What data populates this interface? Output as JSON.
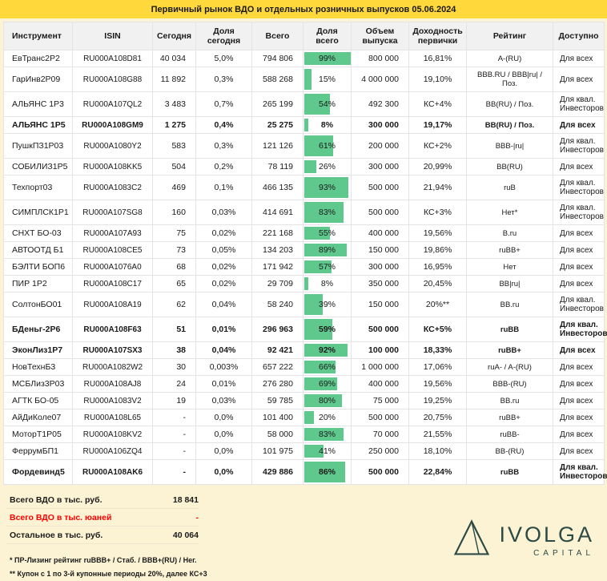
{
  "chart_data": {
    "type": "table",
    "title": "Первичный рынок ВДО и отдельных розничных выпусков 05.06.2024",
    "columns": [
      "Инструмент",
      "ISIN",
      "Сегодня",
      "Доля сегодня",
      "Всего",
      "Доля всего",
      "Объем выпуска",
      "Доходность первички",
      "Рейтинг",
      "Доступно"
    ],
    "rows": [
      {
        "instrument": "ЕвТранс2Р2",
        "isin": "RU000A108D81",
        "today": "40 034",
        "share_today": "5,0%",
        "total": "794 806",
        "share_total": 99,
        "share_total_label": "99%",
        "volume": "800 000",
        "yield": "16,81%",
        "rating": "A-(RU)",
        "access": "Для всех",
        "bold": false
      },
      {
        "instrument": "ГарИнв2Р09",
        "isin": "RU000A108G88",
        "today": "11 892",
        "share_today": "0,3%",
        "total": "588 268",
        "share_total": 15,
        "share_total_label": "15%",
        "volume": "4 000 000",
        "yield": "19,10%",
        "rating": "BBB.RU / BBB|ru| / Поз.",
        "access": "Для всех",
        "bold": false
      },
      {
        "instrument": "АЛЬЯНС 1Р3",
        "isin": "RU000A107QL2",
        "today": "3 483",
        "share_today": "0,7%",
        "total": "265 199",
        "share_total": 54,
        "share_total_label": "54%",
        "volume": "492 300",
        "yield": "КС+4%",
        "rating": "BB(RU) / Поз.",
        "access": "Для квал. Инвесторов",
        "bold": false
      },
      {
        "instrument": "АЛЬЯНС 1Р5",
        "isin": "RU000A108GM9",
        "today": "1 275",
        "share_today": "0,4%",
        "total": "25 275",
        "share_total": 8,
        "share_total_label": "8%",
        "volume": "300 000",
        "yield": "19,17%",
        "rating": "BB(RU) / Поз.",
        "access": "Для всех",
        "bold": true
      },
      {
        "instrument": "ПушкПЗ1Р03",
        "isin": "RU000A1080Y2",
        "today": "583",
        "share_today": "0,3%",
        "total": "121 126",
        "share_total": 61,
        "share_total_label": "61%",
        "volume": "200 000",
        "yield": "КС+2%",
        "rating": "BBB-|ru|",
        "access": "Для квал. Инвесторов",
        "bold": false
      },
      {
        "instrument": "СОБИЛИЗ1Р5",
        "isin": "RU000A108KK5",
        "today": "504",
        "share_today": "0,2%",
        "total": "78 119",
        "share_total": 26,
        "share_total_label": "26%",
        "volume": "300 000",
        "yield": "20,99%",
        "rating": "BB(RU)",
        "access": "Для всех",
        "bold": false
      },
      {
        "instrument": "Техпорт03",
        "isin": "RU000A1083C2",
        "today": "469",
        "share_today": "0,1%",
        "total": "466 135",
        "share_total": 93,
        "share_total_label": "93%",
        "volume": "500 000",
        "yield": "21,94%",
        "rating": "ruB",
        "access": "Для квал. Инвесторов",
        "bold": false
      },
      {
        "instrument": "СИМПЛСК1Р1",
        "isin": "RU000A107SG8",
        "today": "160",
        "share_today": "0,03%",
        "total": "414 691",
        "share_total": 83,
        "share_total_label": "83%",
        "volume": "500 000",
        "yield": "КС+3%",
        "rating": "Нет*",
        "access": "Для квал. Инвесторов",
        "bold": false
      },
      {
        "instrument": "СНХТ БО-03",
        "isin": "RU000A107A93",
        "today": "75",
        "share_today": "0,02%",
        "total": "221 168",
        "share_total": 55,
        "share_total_label": "55%",
        "volume": "400 000",
        "yield": "19,56%",
        "rating": "B.ru",
        "access": "Для всех",
        "bold": false
      },
      {
        "instrument": "АВТООТД Б1",
        "isin": "RU000A108CE5",
        "today": "73",
        "share_today": "0,05%",
        "total": "134 203",
        "share_total": 89,
        "share_total_label": "89%",
        "volume": "150 000",
        "yield": "19,86%",
        "rating": "ruBB+",
        "access": "Для всех",
        "bold": false
      },
      {
        "instrument": "БЭЛТИ БОП6",
        "isin": "RU000A1076A0",
        "today": "68",
        "share_today": "0,02%",
        "total": "171 942",
        "share_total": 57,
        "share_total_label": "57%",
        "volume": "300 000",
        "yield": "16,95%",
        "rating": "Нет",
        "access": "Для всех",
        "bold": false
      },
      {
        "instrument": "ПИР 1Р2",
        "isin": "RU000A108C17",
        "today": "65",
        "share_today": "0,02%",
        "total": "29 709",
        "share_total": 8,
        "share_total_label": "8%",
        "volume": "350 000",
        "yield": "20,45%",
        "rating": "BB|ru|",
        "access": "Для всех",
        "bold": false
      },
      {
        "instrument": "СолтонБО01",
        "isin": "RU000A108A19",
        "today": "62",
        "share_today": "0,04%",
        "total": "58 240",
        "share_total": 39,
        "share_total_label": "39%",
        "volume": "150 000",
        "yield": "20%**",
        "rating": "BB.ru",
        "access": "Для квал. Инвесторов",
        "bold": false
      },
      {
        "instrument": "БДеньг-2Р6",
        "isin": "RU000A108F63",
        "today": "51",
        "share_today": "0,01%",
        "total": "296 963",
        "share_total": 59,
        "share_total_label": "59%",
        "volume": "500 000",
        "yield": "КС+5%",
        "rating": "ruBB",
        "access": "Для квал. Инвесторов",
        "bold": true
      },
      {
        "instrument": "ЭконЛиз1Р7",
        "isin": "RU000A107SX3",
        "today": "38",
        "share_today": "0,04%",
        "total": "92 421",
        "share_total": 92,
        "share_total_label": "92%",
        "volume": "100 000",
        "yield": "18,33%",
        "rating": "ruBB+",
        "access": "Для всех",
        "bold": true
      },
      {
        "instrument": "НовТехнБ3",
        "isin": "RU000A1082W2",
        "today": "30",
        "share_today": "0,003%",
        "total": "657 222",
        "share_total": 66,
        "share_total_label": "66%",
        "volume": "1 000 000",
        "yield": "17,06%",
        "rating": "ruA- / A-(RU)",
        "access": "Для всех",
        "bold": false
      },
      {
        "instrument": "МСБЛиз3Р03",
        "isin": "RU000A108AJ8",
        "today": "24",
        "share_today": "0,01%",
        "total": "276 280",
        "share_total": 69,
        "share_total_label": "69%",
        "volume": "400 000",
        "yield": "19,56%",
        "rating": "BBB-(RU)",
        "access": "Для всех",
        "bold": false
      },
      {
        "instrument": "АГТК БО-05",
        "isin": "RU000A1083V2",
        "today": "19",
        "share_today": "0,03%",
        "total": "59 785",
        "share_total": 80,
        "share_total_label": "80%",
        "volume": "75 000",
        "yield": "19,25%",
        "rating": "BB.ru",
        "access": "Для всех",
        "bold": false
      },
      {
        "instrument": "АйДиКоле07",
        "isin": "RU000A108L65",
        "today": "-",
        "share_today": "0,0%",
        "total": "101 400",
        "share_total": 20,
        "share_total_label": "20%",
        "volume": "500 000",
        "yield": "20,75%",
        "rating": "ruBB+",
        "access": "Для всех",
        "bold": false
      },
      {
        "instrument": "МоторТ1Р05",
        "isin": "RU000A108KV2",
        "today": "-",
        "share_today": "0,0%",
        "total": "58 000",
        "share_total": 83,
        "share_total_label": "83%",
        "volume": "70 000",
        "yield": "21,55%",
        "rating": "ruBB-",
        "access": "Для всех",
        "bold": false
      },
      {
        "instrument": "ФеррумБП1",
        "isin": "RU000A106ZQ4",
        "today": "-",
        "share_today": "0,0%",
        "total": "101 975",
        "share_total": 41,
        "share_total_label": "41%",
        "volume": "250 000",
        "yield": "18,10%",
        "rating": "BB-(RU)",
        "access": "Для всех",
        "bold": false
      },
      {
        "instrument": "Фордевинд5",
        "isin": "RU000A108AK6",
        "today": "-",
        "share_today": "0,0%",
        "total": "429 886",
        "share_total": 86,
        "share_total_label": "86%",
        "volume": "500 000",
        "yield": "22,84%",
        "rating": "ruBB",
        "access": "Для квал. Инвесторов",
        "bold": true
      }
    ],
    "summary": [
      {
        "label": "Всего ВДО в тыс. руб.",
        "value": "18 841",
        "red": false
      },
      {
        "label": "Всего ВДО в тыс. юаней",
        "value": "-",
        "red": true
      },
      {
        "label": "Остальное в тыс. руб.",
        "value": "40 064",
        "red": false
      }
    ],
    "footnotes": [
      "* ПР-Лизинг рейтинг ruBBB+ / Стаб. / BBB+(RU) / Нег.",
      "** Купон с 1 по 3-й купонные периоды 20%, далее КС+3"
    ],
    "colors": {
      "title_bar": "#FFD83C",
      "page_background": "#FBF3D3",
      "bar_green": "#5FC88D",
      "alert_red": "#FF0000",
      "logo_color": "#2C4A46"
    }
  },
  "logo": {
    "name": "IVOLGA",
    "sub": "CAPITAL"
  }
}
